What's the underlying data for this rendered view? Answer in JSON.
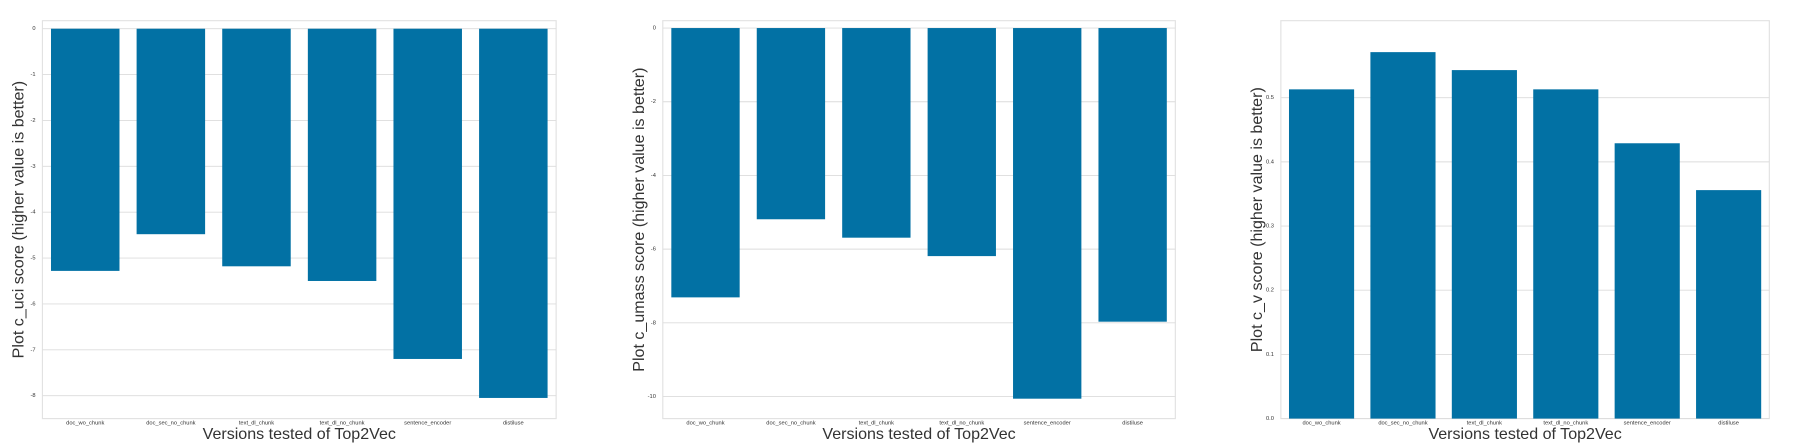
{
  "chart_data": [
    {
      "type": "bar",
      "xlabel": "Versions tested of Top2Vec",
      "ylabel": "Plot c_uci score (higher value is better)",
      "categories": [
        "doc_wo_chunk",
        "doc_sec_no_chunk",
        "text_dl_chunk",
        "text_dl_no_chunk",
        "sentence_encoder",
        "distiluse"
      ],
      "values": [
        -5.28,
        -4.48,
        -5.18,
        -5.5,
        -7.2,
        -8.05
      ],
      "color": "#0271a4",
      "ylim": [
        -8.5,
        0.175
      ],
      "yticks": [
        0,
        -1,
        -2,
        -3,
        -4,
        -5,
        -6,
        -7,
        -8
      ],
      "grid": true
    },
    {
      "type": "bar",
      "xlabel": "Versions tested of Top2Vec",
      "ylabel": "Plot c_umass score (higher value is better)",
      "categories": [
        "doc_wo_chunk",
        "doc_sec_no_chunk",
        "text_dl_chunk",
        "text_dl_no_chunk",
        "sentence_encoder",
        "distiluse"
      ],
      "values": [
        -7.31,
        -5.19,
        -5.69,
        -6.19,
        -10.06,
        -7.97
      ],
      "color": "#0271a4",
      "ylim": [
        -10.6,
        0.2
      ],
      "yticks": [
        0,
        -2,
        -4,
        -6,
        -8,
        -10
      ],
      "grid": true
    },
    {
      "type": "bar",
      "xlabel": "Versions tested of Top2Vec",
      "ylabel": "Plot c_v score (higher value is better)",
      "categories": [
        "doc_wo_chunk",
        "doc_sec_no_chunk",
        "text_dl_chunk",
        "text_dl_no_chunk",
        "sentence_encoder",
        "distiluse"
      ],
      "values": [
        0.513,
        0.571,
        0.543,
        0.513,
        0.429,
        0.356
      ],
      "color": "#0271a4",
      "ylim": [
        0,
        0.62
      ],
      "yticks": [
        {
          "value": 0,
          "label": "0.0"
        },
        0.1,
        0.2,
        0.3,
        0.4,
        0.5
      ],
      "grid": true
    }
  ]
}
